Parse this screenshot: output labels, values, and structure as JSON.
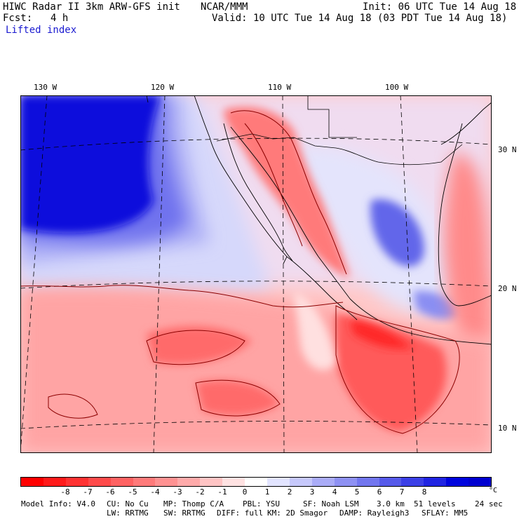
{
  "header": {
    "model_line": "HIWC Radar II 3km ARW-GFS init",
    "org": "NCAR/MMM",
    "init": "Init: 06 UTC Tue 14 Aug 18",
    "fcst_label": "Fcst:",
    "fcst_value": "4 h",
    "valid": "Valid: 10 UTC Tue 14 Aug 18 (03 PDT Tue 14 Aug 18)",
    "field": "Lifted index"
  },
  "map": {
    "lon_labels": [
      "130 W",
      "120 W",
      "110 W",
      "100 W"
    ],
    "lat_labels": [
      "30 N",
      "20 N",
      "10 N"
    ]
  },
  "colorbar": {
    "colors": [
      "#ff0000",
      "#ff1a1a",
      "#ff3232",
      "#ff4a4a",
      "#ff6262",
      "#ff7a7a",
      "#ff9292",
      "#ffaaaa",
      "#ffc4c4",
      "#ffe2e2",
      "#ffffff",
      "#e2e4ff",
      "#c6c8fb",
      "#aaacf7",
      "#8e91f3",
      "#7276ef",
      "#565aea",
      "#3b3fe6",
      "#2024e2",
      "#0004dd",
      "#0000d0"
    ],
    "ticks": [
      "-8",
      "-7",
      "-6",
      "-5",
      "-4",
      "-3",
      "-2",
      "-1",
      "0",
      "1",
      "2",
      "3",
      "4",
      "5",
      "6",
      "7",
      "8"
    ],
    "unit": "°C"
  },
  "footer": {
    "line1": [
      "Model Info: V4.0",
      "CU: No Cu",
      "MP: Thomp C/A",
      "PBL: YSU",
      "SF: Noah LSM",
      "3.0 km  51 levels",
      "24 sec"
    ],
    "line2": [
      "LW: RRTMG",
      "SW: RRTMG",
      "DIFF: full",
      "KM: 2D Smagor",
      "DAMP: Rayleigh3",
      "SFLAY: MM5"
    ]
  }
}
